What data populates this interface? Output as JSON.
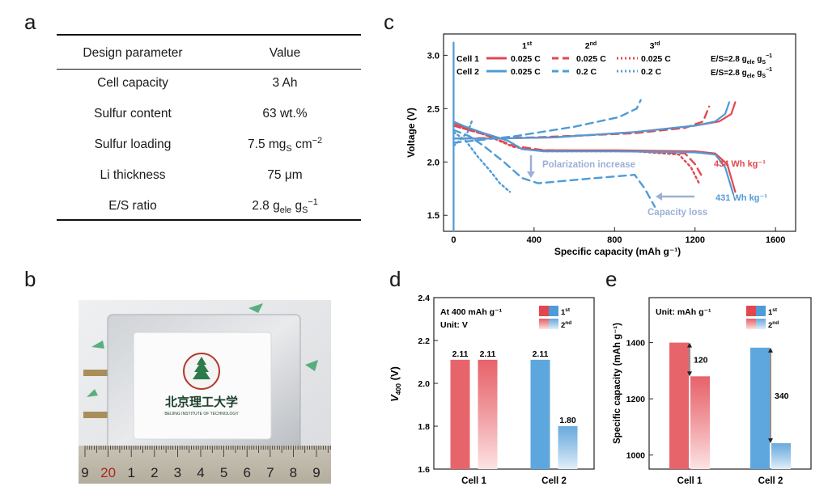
{
  "panels": {
    "a": "a",
    "b": "b",
    "c": "c",
    "d": "d",
    "e": "e"
  },
  "table": {
    "headers": [
      "Design parameter",
      "Value"
    ],
    "rows": [
      {
        "param": "Cell capacity",
        "value": "3 Ah"
      },
      {
        "param": "Sulfur content",
        "value": "63 wt.%"
      },
      {
        "param": "Sulfur loading",
        "value": "7.5 mg",
        "value_sub": "S",
        "value_tail": " cm",
        "value_sup": "−2"
      },
      {
        "param": "Li  thickness",
        "value": "75 μm"
      },
      {
        "param": "E/S ratio",
        "value": "2.8 g",
        "value_sub": "ele",
        "value_tail": " g",
        "value_sub2": "S",
        "value_sup": "−1"
      }
    ]
  },
  "photo": {
    "logo_text_cn": "北京理工大学",
    "logo_text_en": "BEIJING INSTITUTE OF TECHNOLOGY",
    "ruler_labels": [
      "9",
      "20",
      "1",
      "2",
      "3",
      "4",
      "5",
      "6",
      "7",
      "8",
      "9"
    ]
  },
  "colors": {
    "cell1": "#e2474f",
    "cell2": "#4f9bd6",
    "arrow_gray": "#9bb0d6"
  },
  "chart_data": [
    {
      "panel": "c",
      "type": "line",
      "xlabel": "Specific capacity (mAh g⁻¹)",
      "ylabel": "Voltage (V)",
      "xlim": [
        -50,
        1700
      ],
      "ylim": [
        1.35,
        3.2
      ],
      "xticks": [
        0,
        400,
        800,
        1200,
        1600
      ],
      "yticks": [
        1.5,
        2.0,
        2.5,
        3.0
      ],
      "legend": {
        "cycle_headers": [
          {
            "base": "1",
            "sup": "st"
          },
          {
            "base": "2",
            "sup": "nd"
          },
          {
            "base": "3",
            "sup": "rd"
          }
        ],
        "rows": [
          {
            "label": "Cell 1",
            "rates": [
              "0.025 C",
              "0.025 C",
              "0.025 C"
            ]
          },
          {
            "label": "Cell 2",
            "rates": [
              "0.025 C",
              "0.2 C",
              "0.2 C"
            ]
          }
        ],
        "es_label": "E/S=2.8 g",
        "es_sub": "ele",
        "es_tail": " g",
        "es_sup": "−1",
        "es_sub2": "S"
      },
      "annotations": {
        "polarization": "Polarization increase",
        "capacity_loss": "Capacity loss",
        "cell1_energy": "434 Wh kg⁻¹",
        "cell2_energy": "431 Wh kg⁻¹"
      },
      "series": [
        {
          "name": "Cell 1 1st discharge",
          "cell": 1,
          "style": "solid",
          "points": [
            [
              0,
              2.36
            ],
            [
              60,
              2.32
            ],
            [
              150,
              2.27
            ],
            [
              270,
              2.2
            ],
            [
              340,
              2.12
            ],
            [
              450,
              2.11
            ],
            [
              800,
              2.11
            ],
            [
              1200,
              2.1
            ],
            [
              1300,
              2.08
            ],
            [
              1360,
              1.98
            ],
            [
              1400,
              1.72
            ]
          ]
        },
        {
          "name": "Cell 1 1st charge",
          "cell": 1,
          "style": "solid",
          "points": [
            [
              0,
              2.22
            ],
            [
              200,
              2.22
            ],
            [
              500,
              2.23
            ],
            [
              900,
              2.28
            ],
            [
              1200,
              2.34
            ],
            [
              1320,
              2.38
            ],
            [
              1380,
              2.45
            ],
            [
              1400,
              2.56
            ]
          ]
        },
        {
          "name": "Cell 1 2nd discharge",
          "cell": 1,
          "style": "dashed",
          "points": [
            [
              0,
              2.34
            ],
            [
              150,
              2.26
            ],
            [
              300,
              2.15
            ],
            [
              450,
              2.11
            ],
            [
              900,
              2.1
            ],
            [
              1150,
              2.08
            ],
            [
              1200,
              1.98
            ],
            [
              1230,
              1.88
            ]
          ]
        },
        {
          "name": "Cell 1 2nd charge",
          "cell": 1,
          "style": "dashed",
          "points": [
            [
              0,
              2.22
            ],
            [
              400,
              2.23
            ],
            [
              900,
              2.27
            ],
            [
              1150,
              2.32
            ],
            [
              1240,
              2.38
            ],
            [
              1270,
              2.52
            ]
          ]
        },
        {
          "name": "Cell 1 3rd discharge",
          "cell": 1,
          "style": "dotted",
          "points": [
            [
              0,
              2.34
            ],
            [
              150,
              2.26
            ],
            [
              300,
              2.14
            ],
            [
              450,
              2.1
            ],
            [
              900,
              2.1
            ],
            [
              1120,
              2.07
            ],
            [
              1180,
              1.95
            ],
            [
              1220,
              1.8
            ]
          ]
        },
        {
          "name": "Cell 2 1st discharge",
          "cell": 2,
          "style": "solid",
          "points": [
            [
              0,
              2.38
            ],
            [
              60,
              2.33
            ],
            [
              150,
              2.27
            ],
            [
              270,
              2.2
            ],
            [
              340,
              2.12
            ],
            [
              450,
              2.1
            ],
            [
              800,
              2.1
            ],
            [
              1200,
              2.09
            ],
            [
              1300,
              2.07
            ],
            [
              1350,
              1.95
            ],
            [
              1390,
              1.7
            ]
          ]
        },
        {
          "name": "Cell 2 1st charge",
          "cell": 2,
          "style": "solid",
          "points": [
            [
              0,
              2.22
            ],
            [
              200,
              2.22
            ],
            [
              500,
              2.23
            ],
            [
              900,
              2.28
            ],
            [
              1200,
              2.34
            ],
            [
              1300,
              2.38
            ],
            [
              1350,
              2.45
            ],
            [
              1370,
              2.56
            ]
          ]
        },
        {
          "name": "Cell 2 2nd discharge",
          "cell": 2,
          "style": "dashed",
          "points": [
            [
              0,
              2.3
            ],
            [
              80,
              2.24
            ],
            [
              150,
              2.15
            ],
            [
              250,
              2.0
            ],
            [
              340,
              1.85
            ],
            [
              420,
              1.8
            ],
            [
              650,
              1.84
            ],
            [
              900,
              1.88
            ],
            [
              950,
              1.75
            ],
            [
              1000,
              1.58
            ]
          ]
        },
        {
          "name": "Cell 2 2nd charge",
          "cell": 2,
          "style": "dashed",
          "points": [
            [
              0,
              2.18
            ],
            [
              100,
              2.2
            ],
            [
              300,
              2.24
            ],
            [
              600,
              2.33
            ],
            [
              820,
              2.42
            ],
            [
              910,
              2.5
            ],
            [
              930,
              2.58
            ]
          ]
        },
        {
          "name": "Cell 2 3rd discharge",
          "cell": 2,
          "style": "dotted",
          "points": [
            [
              0,
              2.28
            ],
            [
              60,
              2.2
            ],
            [
              120,
              2.05
            ],
            [
              180,
              1.92
            ],
            [
              230,
              1.8
            ],
            [
              280,
              1.72
            ]
          ]
        },
        {
          "name": "Cell 2 3rd charge",
          "cell": 2,
          "style": "dotted",
          "points": [
            [
              0,
              2.15
            ],
            [
              30,
              2.2
            ],
            [
              70,
              2.28
            ],
            [
              90,
              2.38
            ]
          ]
        },
        {
          "name": "Initial spike",
          "cell": 2,
          "style": "solid",
          "points": [
            [
              0,
              1.35
            ],
            [
              0,
              3.12
            ]
          ]
        }
      ]
    },
    {
      "panel": "d",
      "type": "bar",
      "ylabel": "V",
      "ylabel_sub": "400",
      "ylabel_tail": " (V)",
      "ylim": [
        1.6,
        2.4
      ],
      "yticks": [
        1.6,
        1.8,
        2.0,
        2.2,
        2.4
      ],
      "categories": [
        "Cell 1",
        "Cell 2"
      ],
      "series": [
        {
          "name": "1st",
          "values": [
            2.11,
            2.11
          ]
        },
        {
          "name": "2nd",
          "values": [
            2.11,
            1.8
          ]
        }
      ],
      "value_labels": [
        "2.11",
        "2.11",
        "2.11",
        "1.80"
      ],
      "note_line1": "At 400 mAh g⁻¹",
      "note_line2": "Unit: V",
      "legend": [
        {
          "base": "1",
          "sup": "st"
        },
        {
          "base": "2",
          "sup": "nd"
        }
      ]
    },
    {
      "panel": "e",
      "type": "bar",
      "ylabel": "Specific capacity (mAh g⁻¹)",
      "ylim": [
        950,
        1560
      ],
      "yticks": [
        1000,
        1200,
        1400
      ],
      "categories": [
        "Cell 1",
        "Cell 2"
      ],
      "series": [
        {
          "name": "1st",
          "values": [
            1400,
            1382
          ]
        },
        {
          "name": "2nd",
          "values": [
            1280,
            1042
          ]
        }
      ],
      "differences": [
        "120",
        "340"
      ],
      "note_line1": "Unit: mAh g⁻¹",
      "legend": [
        {
          "base": "1",
          "sup": "st"
        },
        {
          "base": "2",
          "sup": "nd"
        }
      ]
    }
  ]
}
